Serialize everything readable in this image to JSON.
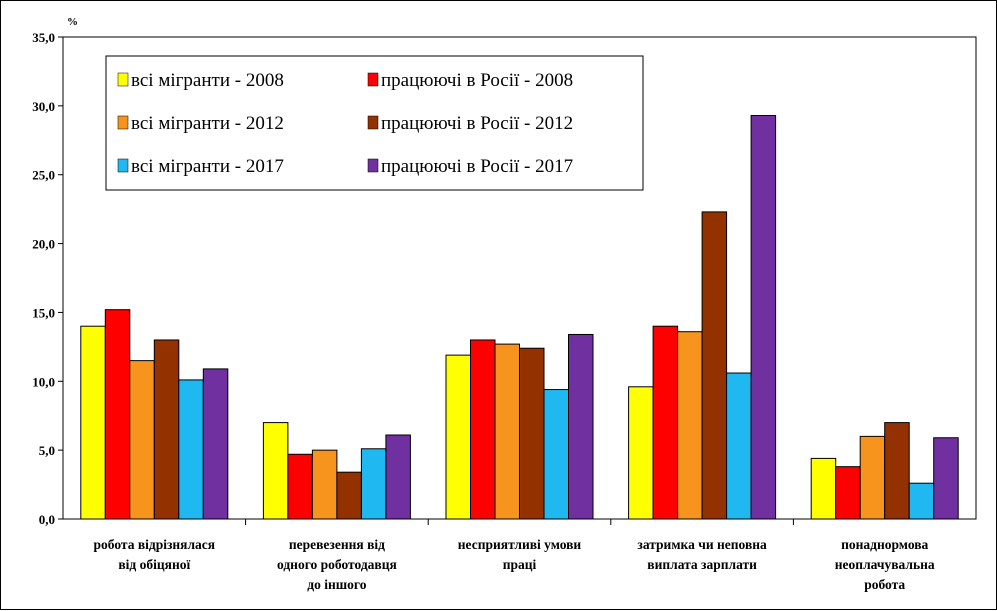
{
  "chart_data": {
    "type": "bar",
    "ylabel": "%",
    "ylim": [
      0,
      35
    ],
    "yticks": [
      "0,0",
      "5,0",
      "10,0",
      "15,0",
      "20,0",
      "25,0",
      "30,0",
      "35,0"
    ],
    "categories": [
      [
        "робота відрізнялася",
        "від обіцяної"
      ],
      [
        "перевезення від",
        "одного роботодавця",
        "до іншого"
      ],
      [
        "несприятливі умови",
        "праці"
      ],
      [
        "затримка чи неповна",
        "виплата зарплати"
      ],
      [
        "понаднормова",
        "неоплачувальна",
        "робота"
      ]
    ],
    "series": [
      {
        "name": "всі мігранти - 2008",
        "color": "#ffff00",
        "values": [
          14.0,
          7.0,
          11.9,
          9.6,
          4.4
        ]
      },
      {
        "name": "працюючі в Росії - 2008",
        "color": "#ff0000",
        "values": [
          15.2,
          4.7,
          13.0,
          14.0,
          3.8
        ]
      },
      {
        "name": "всі мігранти - 2012",
        "color": "#f7941d",
        "values": [
          11.5,
          5.0,
          12.7,
          13.6,
          6.0
        ]
      },
      {
        "name": "працюючі в Росії - 2012",
        "color": "#943100",
        "values": [
          13.0,
          3.4,
          12.4,
          22.3,
          7.0
        ]
      },
      {
        "name": "всі мігранти - 2017",
        "color": "#1fb8f0",
        "values": [
          10.1,
          5.1,
          9.4,
          10.6,
          2.6
        ]
      },
      {
        "name": "працюючі в Росії - 2017",
        "color": "#7030a0",
        "values": [
          10.9,
          6.1,
          13.4,
          29.3,
          5.9
        ]
      }
    ],
    "legend": "top-left, inside plot, 3 rows x 2 columns",
    "grid": false
  }
}
